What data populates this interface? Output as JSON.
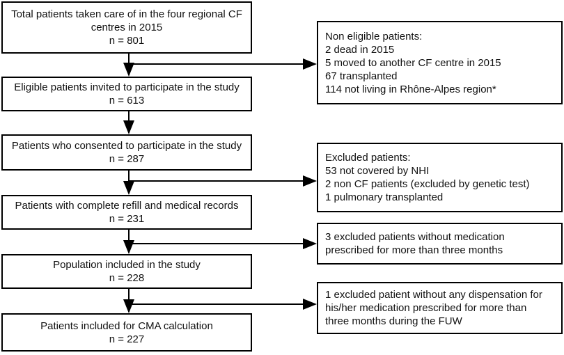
{
  "nodes": [
    {
      "lines": [
        "Total patients taken care of in the four regional CF",
        "centres in 2015",
        "n = 801"
      ]
    },
    {
      "lines": [
        "Eligible patients invited to participate in the study",
        "n = 613"
      ]
    },
    {
      "lines": [
        "Patients who consented to participate in the study",
        "n = 287"
      ]
    },
    {
      "lines": [
        "Patients with complete refill and medical records",
        "n = 231"
      ]
    },
    {
      "lines": [
        "Population included in the study",
        "n = 228"
      ]
    },
    {
      "lines": [
        "Patients included for CMA calculation",
        "n = 227"
      ]
    }
  ],
  "exclusions": [
    {
      "lines": [
        "Non eligible patients:",
        "2 dead in 2015",
        "5 moved to another CF centre in 2015",
        "67 transplanted",
        "114 not living in Rhône-Alpes region*"
      ]
    },
    {
      "lines": [
        "Excluded patients:",
        "53 not covered by NHI",
        "2 non CF patients (excluded by genetic test)",
        "1 pulmonary transplanted"
      ]
    },
    {
      "lines": [
        "3 excluded patients without medication",
        "prescribed for more than three months"
      ]
    },
    {
      "lines": [
        "1 excluded patient without any dispensation for",
        "his/her medication prescribed for more than",
        "three months during the FUW"
      ]
    }
  ]
}
